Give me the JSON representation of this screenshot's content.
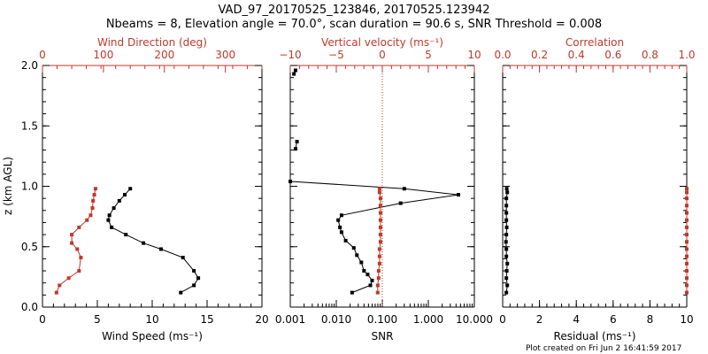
{
  "colors": {
    "black": "#000000",
    "red": "#c0392b"
  },
  "titles": {
    "line1": "VAD_97_20170525_123846, 20170525.123942",
    "line2": "Nbeams = 8, Elevation angle = 70.0°, scan duration = 90.6 s, SNR Threshold = 0.008"
  },
  "footer": "Plot created on Fri Jun  2 16:41:59 2017",
  "ylabel": "z (km AGL)",
  "y_ticks": [
    "0.0",
    "0.5",
    "1.0",
    "1.5",
    "2.0"
  ],
  "chart_data": [
    {
      "type": "line",
      "panel": "wind",
      "ylim": [
        0.0,
        2.0
      ],
      "xlabel_bottom": "Wind Speed (ms⁻¹)",
      "xlabel_top": "Wind Direction (deg)",
      "xlim_bottom": [
        0,
        20
      ],
      "xlim_top": [
        0,
        360
      ],
      "bottom_ticks": [
        "0",
        "5",
        "10",
        "15",
        "20"
      ],
      "top_ticks": [
        "0",
        "100",
        "200",
        "300"
      ],
      "series": [
        {
          "name": "Wind Speed",
          "color": "black",
          "axis": "bottom",
          "x": [
            12.6,
            13.8,
            14.2,
            13.8,
            12.8,
            10.8,
            9.2,
            7.6,
            6.3,
            6.0,
            6.1,
            6.5,
            7.0,
            7.5,
            8.0
          ],
          "y": [
            0.12,
            0.18,
            0.24,
            0.3,
            0.41,
            0.48,
            0.53,
            0.6,
            0.66,
            0.72,
            0.76,
            0.82,
            0.88,
            0.93,
            0.98
          ]
        },
        {
          "name": "Wind Direction",
          "color": "red",
          "axis": "top",
          "x": [
            23,
            28,
            43,
            60,
            63,
            57,
            48,
            48,
            60,
            73,
            79,
            82,
            83,
            85,
            87
          ],
          "y": [
            0.12,
            0.18,
            0.24,
            0.3,
            0.41,
            0.48,
            0.53,
            0.6,
            0.66,
            0.72,
            0.76,
            0.82,
            0.88,
            0.93,
            0.98
          ]
        }
      ]
    },
    {
      "type": "line",
      "panel": "snr",
      "ylim": [
        0.0,
        2.0
      ],
      "xlabel_bottom": "SNR",
      "xlabel_top": "Vertical velocity (ms⁻¹)",
      "xscale": "log",
      "xlim_bottom": [
        0.001,
        10.0
      ],
      "xlim_top": [
        -10,
        10
      ],
      "bottom_ticks": [
        "0.001",
        "0.010",
        "0.100",
        "1.000",
        "10.000"
      ],
      "top_ticks": [
        "−10",
        "−5",
        "0",
        "5",
        "10"
      ],
      "series": [
        {
          "name": "SNR",
          "color": "black",
          "axis": "bottom",
          "x": [
            0.022,
            0.055,
            0.06,
            0.048,
            0.04,
            0.035,
            0.028,
            0.024,
            0.016,
            0.013,
            0.012,
            0.011,
            0.013,
            0.25,
            4.5,
            0.3,
            0.001,
            null,
            0.0013,
            0.0014,
            null,
            0.0012,
            0.0013
          ],
          "y": [
            0.12,
            0.18,
            0.22,
            0.27,
            0.3,
            0.37,
            0.43,
            0.49,
            0.55,
            0.62,
            0.66,
            0.72,
            0.76,
            0.86,
            0.93,
            0.98,
            1.04,
            null,
            1.31,
            1.37,
            null,
            1.93,
            1.96
          ]
        },
        {
          "name": "Vertical velocity",
          "color": "red",
          "axis": "top",
          "x": [
            -0.5,
            -0.5,
            -0.4,
            -0.4,
            -0.3,
            -0.3,
            -0.3,
            -0.2,
            -0.2,
            -0.2,
            -0.2,
            -0.2,
            -0.2,
            -0.2,
            -0.3,
            -0.3
          ],
          "y": [
            0.12,
            0.18,
            0.24,
            0.3,
            0.36,
            0.42,
            0.48,
            0.54,
            0.6,
            0.66,
            0.72,
            0.78,
            0.84,
            0.9,
            0.95,
            0.98
          ]
        }
      ],
      "reference_line": {
        "axis": "top",
        "x": 0,
        "style": "dotted",
        "color": "red"
      }
    },
    {
      "type": "line",
      "panel": "residual",
      "ylim": [
        0.0,
        2.0
      ],
      "xlabel_bottom": "Residual (ms⁻¹)",
      "xlabel_top": "Correlation",
      "xlim_bottom": [
        0,
        10
      ],
      "xlim_top": [
        0.0,
        1.0
      ],
      "bottom_ticks": [
        "0",
        "2",
        "4",
        "6",
        "8",
        "10"
      ],
      "top_ticks": [
        "0.0",
        "0.2",
        "0.4",
        "0.6",
        "0.8",
        "1.0"
      ],
      "series": [
        {
          "name": "Residual",
          "color": "black",
          "axis": "bottom",
          "x": [
            0.2,
            0.25,
            0.2,
            0.22,
            0.25,
            0.2,
            0.2,
            0.18,
            0.2,
            0.22,
            0.2,
            0.2,
            0.2,
            0.2,
            0.25,
            0.22
          ],
          "y": [
            0.12,
            0.18,
            0.24,
            0.3,
            0.36,
            0.42,
            0.48,
            0.54,
            0.6,
            0.66,
            0.72,
            0.78,
            0.84,
            0.9,
            0.95,
            0.98
          ]
        },
        {
          "name": "Correlation",
          "color": "red",
          "axis": "top",
          "x": [
            1.0,
            1.0,
            1.0,
            1.0,
            1.0,
            1.0,
            1.0,
            1.0,
            1.0,
            1.0,
            1.0,
            1.0,
            1.0,
            1.0,
            1.0,
            1.0
          ],
          "y": [
            0.12,
            0.18,
            0.24,
            0.3,
            0.36,
            0.42,
            0.48,
            0.54,
            0.6,
            0.66,
            0.72,
            0.78,
            0.84,
            0.9,
            0.95,
            0.98
          ]
        }
      ]
    }
  ]
}
